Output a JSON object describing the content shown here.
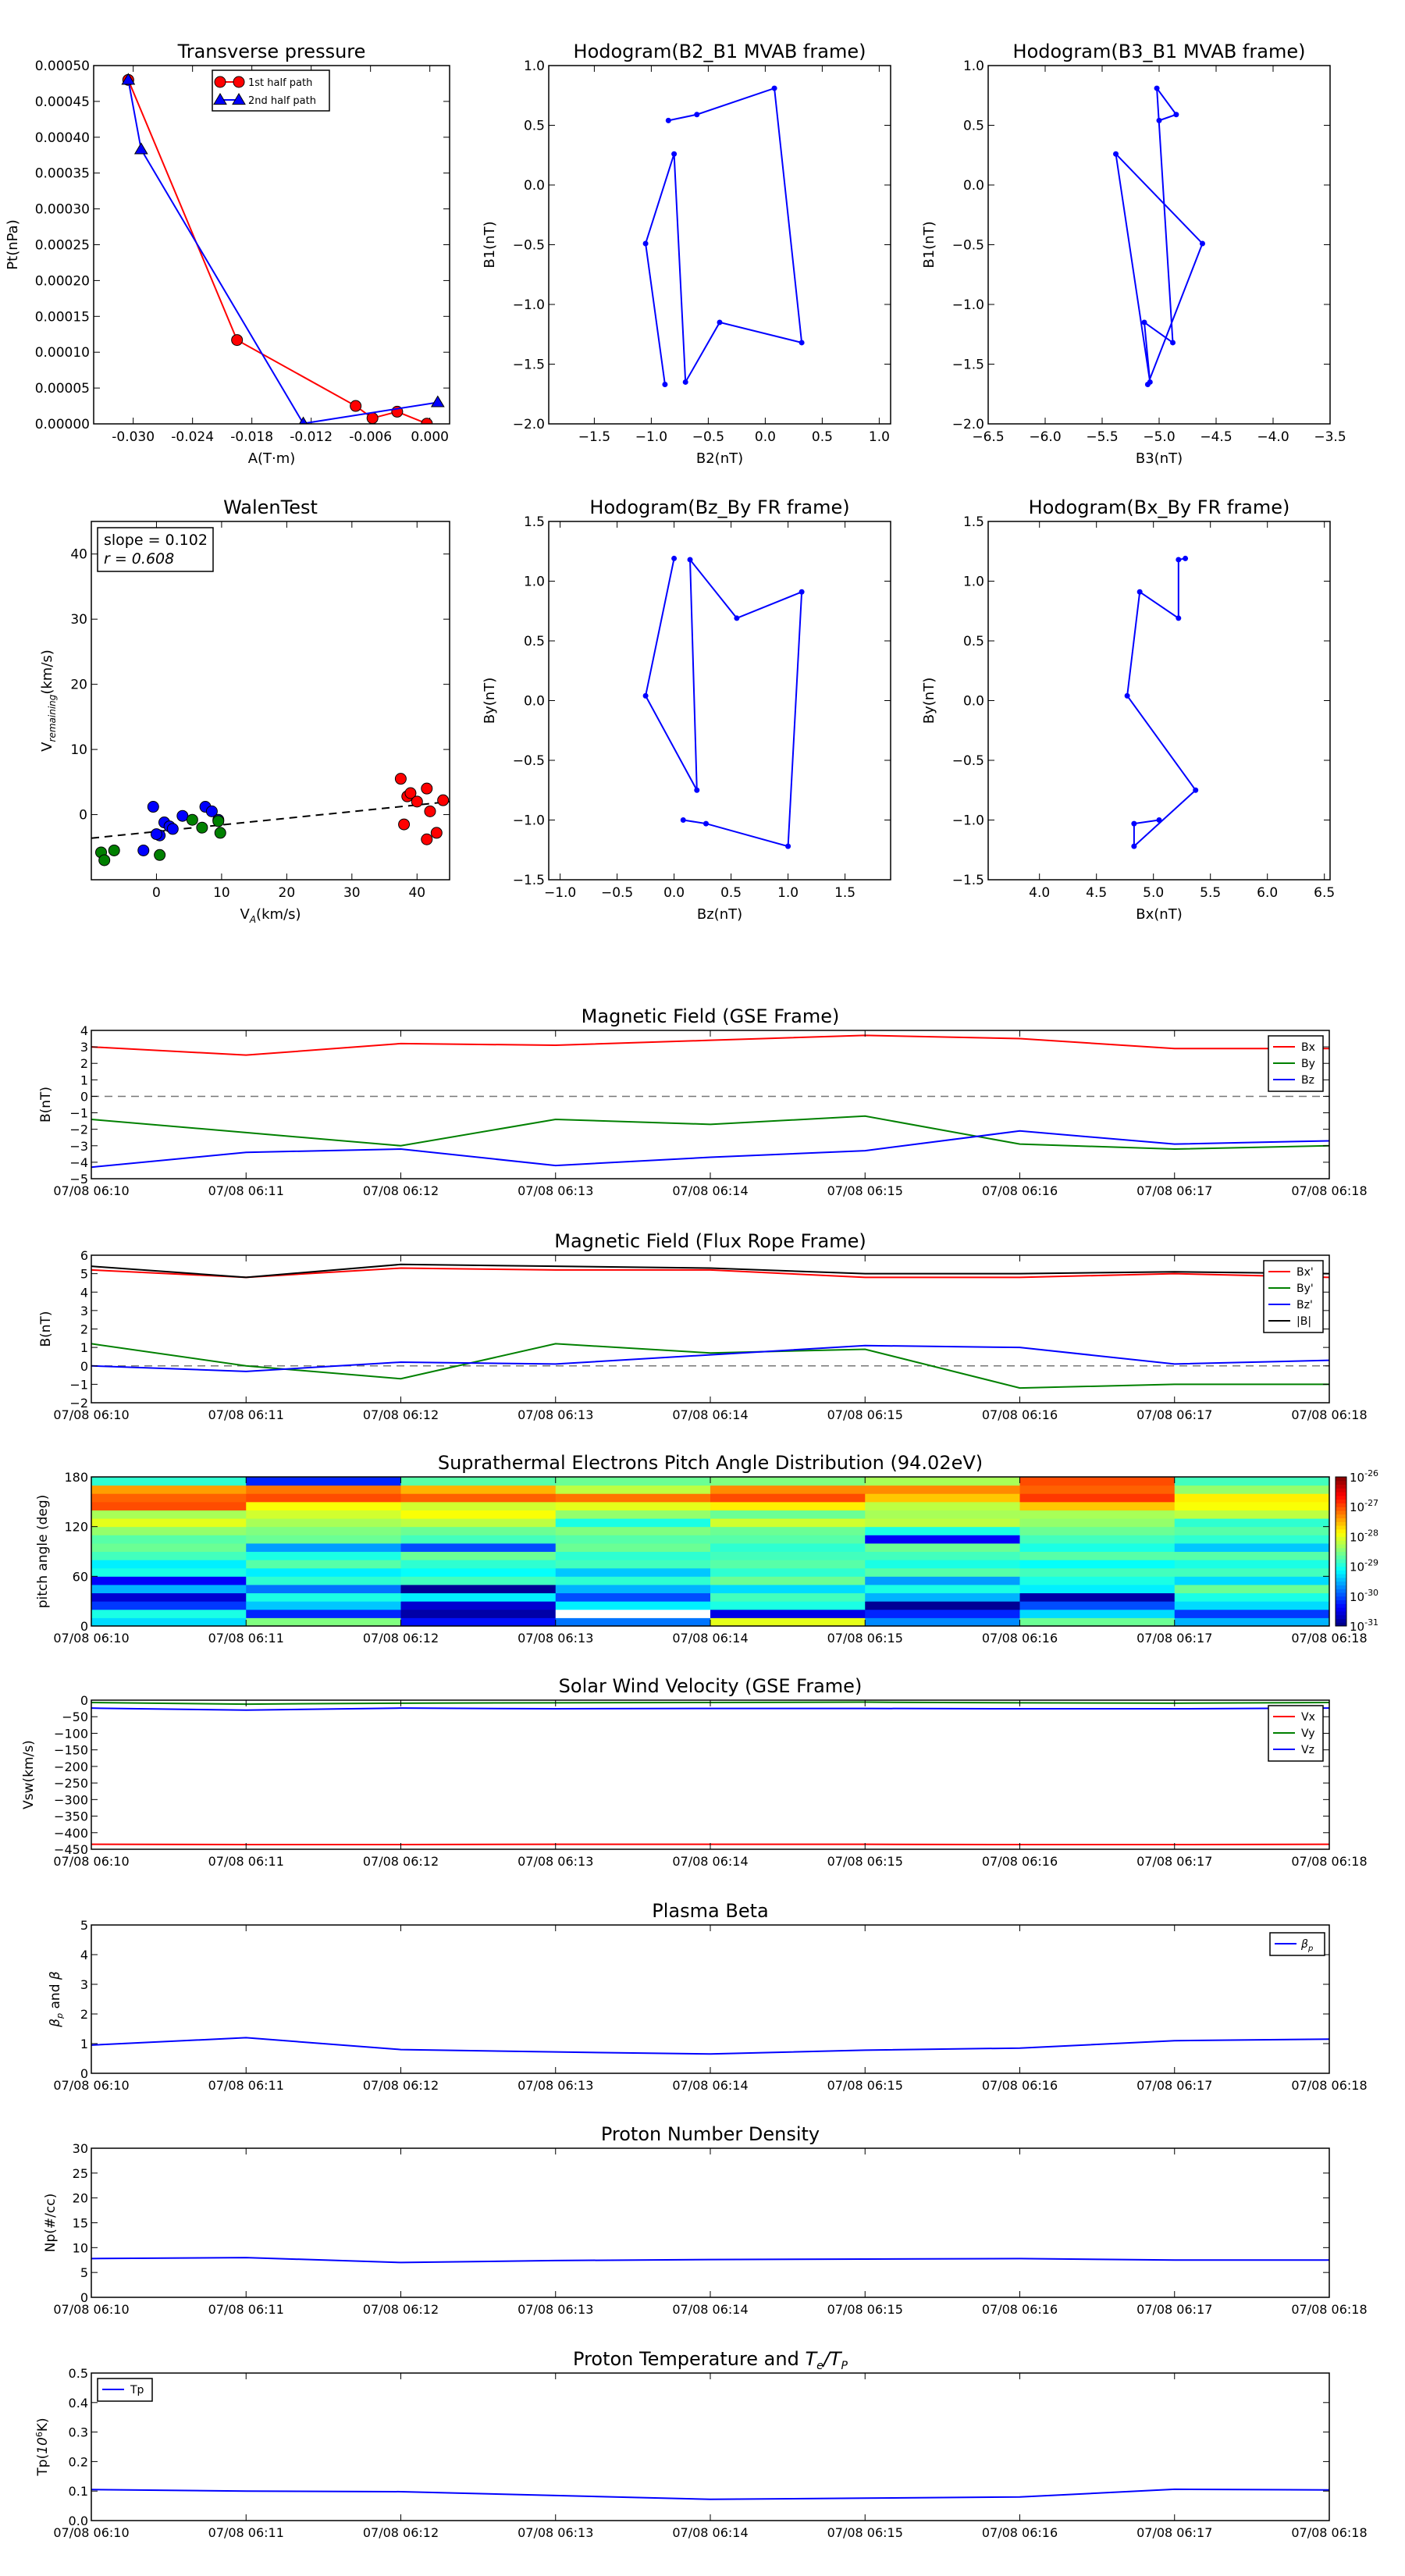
{
  "figure": {
    "times": [
      "07/08 06:10",
      "07/08 06:11",
      "07/08 06:12",
      "07/08 06:13",
      "07/08 06:14",
      "07/08 06:15",
      "07/08 06:16",
      "07/08 06:17",
      "07/08 06:18"
    ],
    "colors": {
      "red": "#ff0000",
      "green": "#008000",
      "blue": "#0000ff",
      "black": "#000000"
    }
  },
  "chart_data": [
    {
      "id": "transverse_pressure",
      "type": "line",
      "title": "Transverse pressure",
      "xlabel": "A(T·m)",
      "ylabel": "Pt(nPa)",
      "xlim": [
        -0.034,
        0.002
      ],
      "ylim": [
        0,
        0.0005
      ],
      "xticks": [
        "-0.030",
        "-0.024",
        "-0.018",
        "-0.012",
        "-0.006",
        "0.000"
      ],
      "xtick_values": [
        -0.03,
        -0.024,
        -0.018,
        -0.012,
        -0.006,
        0.0
      ],
      "yticks": [
        "0.00000",
        "0.00005",
        "0.00010",
        "0.00015",
        "0.00020",
        "0.00025",
        "0.00030",
        "0.00035",
        "0.00040",
        "0.00045",
        "0.00050"
      ],
      "ytick_values": [
        0,
        5e-05,
        0.0001,
        0.00015,
        0.0002,
        0.00025,
        0.0003,
        0.00035,
        0.0004,
        0.00045,
        0.0005
      ],
      "legend_position": "upper-center",
      "series": [
        {
          "name": "1st half path",
          "color": "#ff0000",
          "marker": "circle",
          "x": [
            -0.0305,
            -0.0195,
            -0.0075,
            -0.0058,
            -0.0033,
            -0.0003
          ],
          "y": [
            0.00048,
            0.000117,
            2.5e-05,
            8e-06,
            1.7e-05,
            3e-07
          ]
        },
        {
          "name": "2nd half path",
          "color": "#0000ff",
          "marker": "triangle",
          "x": [
            -0.0305,
            -0.0292,
            -0.0128,
            0.0008
          ],
          "y": [
            0.00048,
            0.000383,
            5e-07,
            3e-05
          ]
        }
      ]
    },
    {
      "id": "hodogram_b2_b1",
      "type": "line",
      "title": "Hodogram(B2_B1 MVAB frame)",
      "xlabel": "B2(nT)",
      "ylabel": "B1(nT)",
      "xlim": [
        -1.9,
        1.1
      ],
      "ylim": [
        -2.0,
        1.0
      ],
      "xticks": [
        "−1.5",
        "−1.0",
        "−0.5",
        "0.0",
        "0.5",
        "1.0"
      ],
      "xtick_values": [
        -1.5,
        -1.0,
        -0.5,
        0.0,
        0.5,
        1.0
      ],
      "yticks": [
        "−2.0",
        "−1.5",
        "−1.0",
        "−0.5",
        "0.0",
        "0.5",
        "1.0"
      ],
      "ytick_values": [
        -2.0,
        -1.5,
        -1.0,
        -0.5,
        0.0,
        0.5,
        1.0
      ],
      "series": [
        {
          "color": "#0000ff",
          "marker": "dot",
          "x": [
            -0.85,
            -0.6,
            0.08,
            0.32,
            -0.4,
            -0.7,
            -0.8,
            -1.05,
            -0.88
          ],
          "y": [
            0.54,
            0.59,
            0.81,
            -1.32,
            -1.15,
            -1.65,
            0.26,
            -0.49,
            -1.67
          ]
        }
      ]
    },
    {
      "id": "hodogram_b3_b1",
      "type": "line",
      "title": "Hodogram(B3_B1 MVAB frame)",
      "xlabel": "B3(nT)",
      "ylabel": "B1(nT)",
      "xlim": [
        -6.5,
        -3.5
      ],
      "ylim": [
        -2.0,
        1.0
      ],
      "xticks": [
        "−6.5",
        "−6.0",
        "−5.5",
        "−5.0",
        "−4.5",
        "−4.0",
        "−3.5"
      ],
      "xtick_values": [
        -6.5,
        -6.0,
        -5.5,
        -5.0,
        -4.5,
        -4.0,
        -3.5
      ],
      "yticks": [
        "−2.0",
        "−1.5",
        "−1.0",
        "−0.5",
        "0.0",
        "0.5",
        "1.0"
      ],
      "ytick_values": [
        -2.0,
        -1.5,
        -1.0,
        -0.5,
        0.0,
        0.5,
        1.0
      ],
      "series": [
        {
          "color": "#0000ff",
          "marker": "dot",
          "x": [
            -5.0,
            -4.85,
            -5.02,
            -4.88,
            -5.13,
            -5.08,
            -5.38,
            -4.62,
            -5.1
          ],
          "y": [
            0.54,
            0.59,
            0.81,
            -1.32,
            -1.15,
            -1.65,
            0.26,
            -0.49,
            -1.67
          ]
        }
      ]
    },
    {
      "id": "walen_test",
      "type": "scatter",
      "title": "WalenTest",
      "xlabel": "V_A(km/s)",
      "ylabel": "V_remaining(km/s)",
      "xlim": [
        -10,
        45
      ],
      "ylim": [
        -10,
        45
      ],
      "xticks": [
        "0",
        "10",
        "20",
        "30",
        "40"
      ],
      "xtick_values": [
        0,
        10,
        20,
        30,
        40
      ],
      "yticks": [
        "0",
        "10",
        "20",
        "30",
        "40"
      ],
      "ytick_values": [
        0,
        10,
        20,
        30,
        40
      ],
      "annotation": [
        "slope = 0.102",
        "r = 0.608"
      ],
      "fit": {
        "slope": 0.102,
        "intercept": -2.6
      },
      "series": [
        {
          "color": "#0000ff",
          "x": [
            -0.5,
            0.5,
            1.2,
            2,
            2.5,
            4,
            7.5,
            8.5,
            9.5,
            -2,
            0
          ],
          "y": [
            1.2,
            -3.2,
            -1.2,
            -1.8,
            -2.2,
            -0.2,
            1.2,
            0.5,
            -0.8,
            -5.5,
            -3
          ]
        },
        {
          "color": "#008000",
          "x": [
            -8.5,
            -8,
            -6.5,
            0.5,
            5.5,
            7,
            9.5,
            9.8
          ],
          "y": [
            -5.8,
            -7,
            -5.5,
            -6.2,
            -0.8,
            -2,
            -1,
            -2.8
          ]
        },
        {
          "color": "#ff0000",
          "x": [
            37.5,
            38,
            38.5,
            39,
            40,
            41.5,
            42,
            43,
            44,
            41.5
          ],
          "y": [
            5.5,
            -1.5,
            2.8,
            3.3,
            2,
            4,
            0.5,
            -2.8,
            2.2,
            -3.8
          ]
        }
      ]
    },
    {
      "id": "hodogram_bz_by",
      "type": "line",
      "title": "Hodogram(Bz_By FR frame)",
      "xlabel": "Bz(nT)",
      "ylabel": "By(nT)",
      "xlim": [
        -1.1,
        1.9
      ],
      "ylim": [
        -1.5,
        1.5
      ],
      "xticks": [
        "−1.0",
        "−0.5",
        "0.0",
        "0.5",
        "1.0",
        "1.5"
      ],
      "xtick_values": [
        -1.0,
        -0.5,
        0.0,
        0.5,
        1.0,
        1.5
      ],
      "yticks": [
        "−1.5",
        "−1.0",
        "−0.5",
        "0.0",
        "0.5",
        "1.0",
        "1.5"
      ],
      "ytick_values": [
        -1.5,
        -1.0,
        -0.5,
        0.0,
        0.5,
        1.0,
        1.5
      ],
      "series": [
        {
          "color": "#0000ff",
          "marker": "dot",
          "x": [
            0.08,
            0.28,
            1.0,
            1.12,
            0.55,
            0.14,
            0.2,
            -0.25,
            0.0
          ],
          "y": [
            -1.0,
            -1.03,
            -1.22,
            0.91,
            0.69,
            1.18,
            -0.75,
            0.04,
            1.19
          ]
        }
      ]
    },
    {
      "id": "hodogram_bx_by",
      "type": "line",
      "title": "Hodogram(Bx_By FR frame)",
      "xlabel": "Bx(nT)",
      "ylabel": "By(nT)",
      "xlim": [
        3.55,
        6.55
      ],
      "ylim": [
        -1.5,
        1.5
      ],
      "xticks": [
        "4.0",
        "4.5",
        "5.0",
        "5.5",
        "6.0",
        "6.5"
      ],
      "xtick_values": [
        4.0,
        4.5,
        5.0,
        5.5,
        6.0,
        6.5
      ],
      "yticks": [
        "−1.5",
        "−1.0",
        "−0.5",
        "0.0",
        "0.5",
        "1.0",
        "1.5"
      ],
      "ytick_values": [
        -1.5,
        -1.0,
        -0.5,
        0.0,
        0.5,
        1.0,
        1.5
      ],
      "series": [
        {
          "color": "#0000ff",
          "marker": "dot",
          "x": [
            5.05,
            4.83,
            4.83,
            5.37,
            4.77,
            4.88,
            5.22,
            5.22,
            5.28
          ],
          "y": [
            -1.0,
            -1.03,
            -1.22,
            -0.75,
            0.04,
            0.91,
            0.69,
            1.18,
            1.19
          ]
        }
      ]
    },
    {
      "id": "mag_gse",
      "type": "line",
      "title": "Magnetic Field (GSE Frame)",
      "ylabel": "B(nT)",
      "ylim": [
        -5,
        4
      ],
      "yticks": [
        "−5",
        "−4",
        "−3",
        "−2",
        "−1",
        "0",
        "1",
        "2",
        "3",
        "4"
      ],
      "ytick_values": [
        -5,
        -4,
        -3,
        -2,
        -1,
        0,
        1,
        2,
        3,
        4
      ],
      "zero_line": true,
      "legend_position": "upper-right",
      "series": [
        {
          "name": "Bx",
          "color": "#ff0000",
          "values": [
            3.0,
            2.5,
            3.2,
            3.1,
            3.4,
            3.7,
            3.5,
            2.9,
            2.9
          ]
        },
        {
          "name": "By",
          "color": "#008000",
          "values": [
            -1.4,
            -2.2,
            -3.0,
            -1.4,
            -1.7,
            -1.2,
            -2.9,
            -3.2,
            -3.0
          ]
        },
        {
          "name": "Bz",
          "color": "#0000ff",
          "values": [
            -4.3,
            -3.4,
            -3.2,
            -4.2,
            -3.7,
            -3.3,
            -2.1,
            -2.9,
            -2.7
          ]
        }
      ]
    },
    {
      "id": "mag_fr",
      "type": "line",
      "title": "Magnetic Field (Flux Rope Frame)",
      "ylabel": "B(nT)",
      "ylim": [
        -2,
        6
      ],
      "yticks": [
        "−2",
        "−1",
        "0",
        "1",
        "2",
        "3",
        "4",
        "5",
        "6"
      ],
      "ytick_values": [
        -2,
        -1,
        0,
        1,
        2,
        3,
        4,
        5,
        6
      ],
      "zero_line": true,
      "legend_position": "upper-right",
      "series": [
        {
          "name": "Bx'",
          "color": "#ff0000",
          "values": [
            5.2,
            4.8,
            5.3,
            5.2,
            5.2,
            4.8,
            4.8,
            5.0,
            4.8
          ]
        },
        {
          "name": "By'",
          "color": "#008000",
          "values": [
            1.2,
            0.0,
            -0.7,
            1.2,
            0.7,
            0.9,
            -1.2,
            -1.0,
            -1.0
          ]
        },
        {
          "name": "Bz'",
          "color": "#0000ff",
          "values": [
            0.0,
            -0.3,
            0.2,
            0.1,
            0.6,
            1.1,
            1.0,
            0.1,
            0.3
          ]
        },
        {
          "name": "|B|",
          "color": "#000000",
          "values": [
            5.4,
            4.8,
            5.5,
            5.4,
            5.3,
            5.0,
            5.0,
            5.1,
            5.0
          ]
        }
      ]
    },
    {
      "id": "pitch_angle",
      "type": "heatmap",
      "title": "Suprathermal Electrons Pitch Angle Distribution (94.02eV)",
      "ylabel": "pitch angle (deg)",
      "ylim": [
        0,
        180
      ],
      "yticks": [
        "0",
        "60",
        "120",
        "180"
      ],
      "ytick_values": [
        0,
        60,
        120,
        180
      ],
      "colorbar_ticks": [
        "10",
        "10",
        "10",
        "10",
        "10",
        "10"
      ],
      "colorbar_exponents": [
        "-26",
        "-27",
        "-28",
        "-29",
        "-30",
        "-31"
      ],
      "colorbar_range_log": [
        -31,
        -26
      ],
      "bins_deg": [
        0,
        10,
        20,
        30,
        40,
        50,
        60,
        70,
        80,
        90,
        100,
        110,
        120,
        130,
        140,
        150,
        160,
        170,
        180
      ],
      "values_log10": [
        [
          -29.3,
          -28.5,
          -30.3,
          -29.8,
          -28.0,
          -29.7,
          -28.6,
          -29.5,
          -28.4
        ],
        [
          -29.0,
          -30.2,
          -30.8,
          -32.0,
          -30.5,
          -30.2,
          -29.3,
          -30.1,
          -28.9
        ],
        [
          -30.1,
          -29.4,
          -30.6,
          -29.2,
          -29.0,
          -30.9,
          -30.0,
          -29.3,
          -29.4
        ],
        [
          -30.6,
          -29.0,
          -29.2,
          -30.0,
          -28.8,
          -29.5,
          -30.8,
          -29.0,
          -29.1
        ],
        [
          -29.5,
          -29.8,
          -30.9,
          -29.5,
          -29.3,
          -29.0,
          -29.2,
          -28.6,
          -28.8
        ],
        [
          -30.4,
          -28.9,
          -28.8,
          -28.9,
          -28.6,
          -29.6,
          -29.0,
          -29.3,
          -29.0
        ],
        [
          -29.0,
          -29.2,
          -29.1,
          -29.4,
          -28.9,
          -28.7,
          -28.8,
          -28.8,
          -28.7
        ],
        [
          -29.2,
          -28.7,
          -28.9,
          -28.8,
          -28.7,
          -29.0,
          -29.1,
          -29.0,
          -29.2
        ],
        [
          -28.8,
          -29.0,
          -28.6,
          -28.9,
          -28.8,
          -28.8,
          -28.7,
          -28.7,
          -28.8
        ],
        [
          -28.6,
          -29.6,
          -30.0,
          -28.6,
          -28.9,
          -28.6,
          -29.0,
          -29.4,
          -28.6
        ],
        [
          -28.7,
          -28.6,
          -28.8,
          -28.7,
          -28.7,
          -30.4,
          -28.8,
          -28.9,
          -28.9
        ],
        [
          -28.4,
          -28.5,
          -28.6,
          -28.5,
          -28.6,
          -29.0,
          -28.6,
          -28.7,
          -28.5
        ],
        [
          -28.0,
          -28.3,
          -28.2,
          -29.0,
          -28.1,
          -28.2,
          -28.4,
          -28.9,
          -28.4
        ],
        [
          -28.3,
          -28.1,
          -27.9,
          -28.4,
          -28.6,
          -28.3,
          -28.3,
          -28.2,
          -28.1
        ],
        [
          -27.0,
          -27.9,
          -28.1,
          -28.0,
          -27.8,
          -28.2,
          -27.6,
          -27.9,
          -27.6
        ],
        [
          -27.1,
          -27.0,
          -27.1,
          -27.2,
          -27.0,
          -27.6,
          -26.9,
          -27.8,
          -27.5
        ],
        [
          -27.4,
          -27.2,
          -27.5,
          -28.2,
          -27.3,
          -27.3,
          -27.1,
          -28.4,
          -27.6
        ],
        [
          -28.9,
          -30.2,
          -28.7,
          -28.6,
          -28.5,
          -28.3,
          -27.0,
          -28.8,
          -28.2
        ]
      ]
    },
    {
      "id": "solar_wind",
      "type": "line",
      "title": "Solar Wind Velocity (GSE Frame)",
      "ylabel": "Vsw(km/s)",
      "ylim": [
        -450,
        0
      ],
      "yticks": [
        "−450",
        "−400",
        "−350",
        "−300",
        "−250",
        "−200",
        "−150",
        "−100",
        "−50",
        "0"
      ],
      "ytick_values": [
        -450,
        -400,
        -350,
        -300,
        -250,
        -200,
        -150,
        -100,
        -50,
        0
      ],
      "legend_position": "upper-right",
      "series": [
        {
          "name": "Vx",
          "color": "#ff0000",
          "values": [
            -435,
            -436,
            -436,
            -435,
            -435,
            -435,
            -436,
            -436,
            -435
          ]
        },
        {
          "name": "Vy",
          "color": "#008000",
          "values": [
            -7,
            -12,
            -9,
            -8,
            -7,
            -6,
            -8,
            -9,
            -7
          ]
        },
        {
          "name": "Vz",
          "color": "#0000ff",
          "values": [
            -24,
            -30,
            -24,
            -26,
            -25,
            -25,
            -26,
            -26,
            -24
          ]
        }
      ]
    },
    {
      "id": "plasma_beta",
      "type": "line",
      "title": "Plasma Beta",
      "ylabel": "βp and β",
      "ylim": [
        0,
        5
      ],
      "yticks": [
        "0",
        "1",
        "2",
        "3",
        "4",
        "5"
      ],
      "ytick_values": [
        0,
        1,
        2,
        3,
        4,
        5
      ],
      "legend_position": "upper-right",
      "series": [
        {
          "name": "βp",
          "color": "#0000ff",
          "values": [
            0.95,
            1.2,
            0.8,
            0.72,
            0.65,
            0.78,
            0.85,
            1.1,
            1.15
          ]
        }
      ]
    },
    {
      "id": "proton_density",
      "type": "line",
      "title": "Proton Number Density",
      "ylabel": "Np(#/cc)",
      "ylim": [
        0,
        30
      ],
      "yticks": [
        "0",
        "5",
        "10",
        "15",
        "20",
        "25",
        "30"
      ],
      "ytick_values": [
        0,
        5,
        10,
        15,
        20,
        25,
        30
      ],
      "series": [
        {
          "color": "#0000ff",
          "values": [
            7.8,
            8.0,
            7.0,
            7.4,
            7.6,
            7.7,
            7.8,
            7.5,
            7.5
          ]
        }
      ]
    },
    {
      "id": "proton_temperature",
      "type": "line",
      "title": "Proton Temperature and Te/Tp",
      "ylabel": "Tp(10^6K)",
      "ylim": [
        0,
        0.5
      ],
      "yticks": [
        "0.0",
        "0.1",
        "0.2",
        "0.3",
        "0.4",
        "0.5"
      ],
      "ytick_values": [
        0,
        0.1,
        0.2,
        0.3,
        0.4,
        0.5
      ],
      "legend_position": "upper-left",
      "series": [
        {
          "name": "Tp",
          "color": "#0000ff",
          "values": [
            0.105,
            0.1,
            0.098,
            0.085,
            0.072,
            0.076,
            0.08,
            0.106,
            0.104
          ]
        }
      ]
    }
  ]
}
